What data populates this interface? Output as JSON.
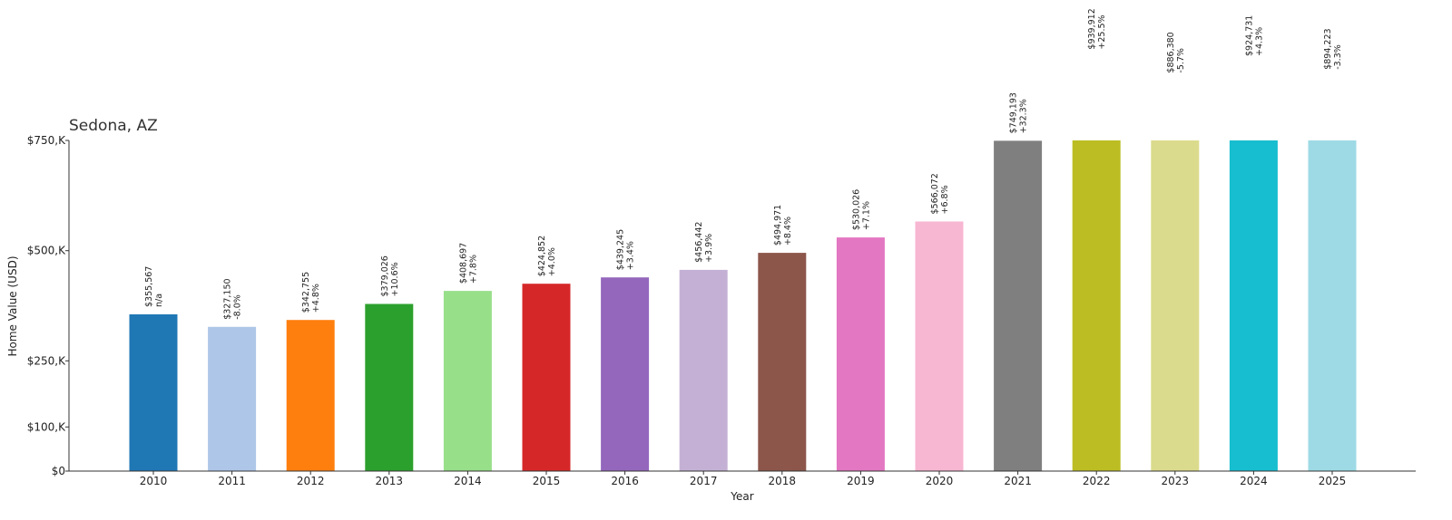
{
  "chart_data": {
    "type": "bar",
    "title": "Sedona, AZ",
    "xlabel": "Year",
    "ylabel": "Home Value (USD)",
    "ylim": [
      0,
      750000
    ],
    "clipped_at_top": true,
    "yticks": [
      {
        "value": 0,
        "label": "$0"
      },
      {
        "value": 100000,
        "label": "$100,K"
      },
      {
        "value": 250000,
        "label": "$250,K"
      },
      {
        "value": 500000,
        "label": "$500,K"
      },
      {
        "value": 750000,
        "label": "$750,K"
      }
    ],
    "grid": false,
    "legend": "none",
    "categories": [
      "2010",
      "2011",
      "2012",
      "2013",
      "2014",
      "2015",
      "2016",
      "2017",
      "2018",
      "2019",
      "2020",
      "2021",
      "2022",
      "2023",
      "2024",
      "2025"
    ],
    "values": [
      355567,
      327150,
      342755,
      379026,
      408697,
      424852,
      439245,
      456442,
      494971,
      530026,
      566072,
      749193,
      939912,
      886380,
      924731,
      894223
    ],
    "value_labels": [
      "$355,567",
      "$327,150",
      "$342,755",
      "$379,026",
      "$408,697",
      "$424,852",
      "$439,245",
      "$456,442",
      "$494,971",
      "$530,026",
      "$566,072",
      "$749,193",
      "$939,912",
      "$886,380",
      "$924,731",
      "$894,223"
    ],
    "change_labels": [
      "n/a",
      "-8.0%",
      "+4.8%",
      "+10.6%",
      "+7.8%",
      "+4.0%",
      "+3.4%",
      "+3.9%",
      "+8.4%",
      "+7.1%",
      "+6.8%",
      "+32.3%",
      "+25.5%",
      "-5.7%",
      "+4.3%",
      "-3.3%"
    ],
    "colors": [
      "#1f77b4",
      "#aec7e8",
      "#ff7f0e",
      "#2ca02c",
      "#98df8a",
      "#d62728",
      "#9467bd",
      "#c5b0d5",
      "#8c564b",
      "#e377c2",
      "#f7b6d2",
      "#7f7f7f",
      "#bcbd22",
      "#dbdb8d",
      "#17becf",
      "#9edae5"
    ]
  }
}
